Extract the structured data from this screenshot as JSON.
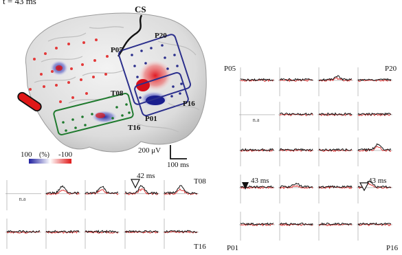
{
  "figure": {
    "time_label": "t = 43 ms",
    "cs_label": "CS",
    "colorbar": {
      "left": "100",
      "unit": "(%)",
      "right": "-100"
    },
    "scalebar": {
      "voltage": "200 μV",
      "time": "100 ms"
    },
    "na_label": "n.a",
    "colors": {
      "recorded": "#111111",
      "model": "#e23b3b",
      "grid_blue": "#2b2f8c",
      "grid_green": "#1f7a2e"
    }
  },
  "brain": {
    "labels": {
      "p05": "P05",
      "p20": "P20",
      "p16": "P16",
      "p01": "P01",
      "t08": "T08",
      "t16": "T16"
    }
  },
  "right_panel": {
    "top_left": "P05",
    "top_right": "P20",
    "bottom_left": "P01",
    "bottom_right": "P16",
    "annot_1": "43 ms",
    "annot_2": "43 ms"
  },
  "left_panel": {
    "top_right": "T08",
    "bottom_right": "T16",
    "annot": "42 ms"
  }
}
